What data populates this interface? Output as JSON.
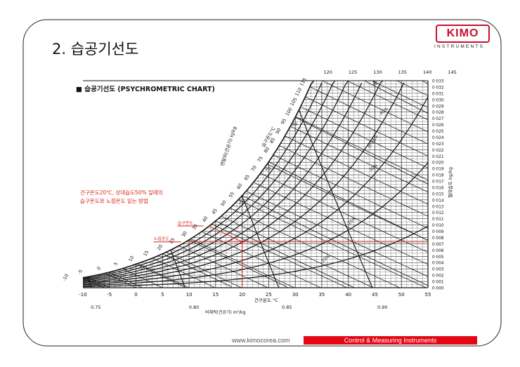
{
  "slide": {
    "title": "2. 습공기선도",
    "logo_text": "KIMO",
    "logo_sub": "INSTRUMENTS",
    "footer_url": "www.kimocorea.com",
    "footer_tagline": "Control  &  Measuring  Instruments"
  },
  "chart_data": {
    "type": "line",
    "title": "■ 습공기선도 (PSYCHROMETRIC CHART)",
    "annotation_lines": [
      "건구온도20℃, 상대습도50% 일때의",
      "습구온도와 노점온도 읽는 방법"
    ],
    "marker_labels": {
      "wet_bulb": "습구온도",
      "dew_point": "노점온도"
    },
    "xlabel": "건구온도 °C",
    "ylabel": "절대습도 kg/kg",
    "enthalpy_label": "엔탈피(건공기) kJ/kg",
    "wet_bulb_axis_label": "습구온도°C",
    "sv_axis_label": "비체적(건공기) m³/kg",
    "rh_axis_label": "상대습도",
    "xlim": [
      -10,
      55
    ],
    "ylim": [
      0,
      0.033
    ],
    "x_ticks": [
      -10,
      -5,
      0,
      5,
      10,
      15,
      20,
      25,
      30,
      35,
      40,
      45,
      50,
      55
    ],
    "y_ticks": [
      "0·000",
      "0·001",
      "0·002",
      "0·003",
      "0·004",
      "0·005",
      "0·006",
      "0·007",
      "0·008",
      "0·009",
      "0·010",
      "0·011",
      "0·012",
      "0·013",
      "0·014",
      "0·015",
      "0·016",
      "0·017",
      "0·018",
      "0·019",
      "0·020",
      "0·021",
      "0·022",
      "0·023",
      "0·024",
      "0·025",
      "0·026",
      "0·027",
      "0·028",
      "0·029",
      "0·030",
      "0·031",
      "0·032",
      "0·033"
    ],
    "enthalpy_ticks": [
      -10,
      -5,
      0,
      5,
      10,
      15,
      20,
      25,
      30,
      35,
      40,
      45,
      50,
      55,
      60,
      65,
      70,
      75,
      80,
      85,
      90,
      95,
      100,
      105,
      110,
      115,
      120,
      125,
      130,
      135,
      140,
      145
    ],
    "wet_bulb_ticks": [
      20,
      25,
      30,
      35,
      40,
      45,
      50,
      55
    ],
    "specific_volume_ticks": [
      "0.75",
      "0.80",
      "0.85",
      "0.90"
    ],
    "rh_curves": [
      {
        "label": "10%",
        "rh": 0.1
      },
      {
        "label": "20%",
        "rh": 0.2
      },
      {
        "label": "30%",
        "rh": 0.3
      },
      {
        "label": "40%",
        "rh": 0.4
      },
      {
        "label": "50%",
        "rh": 0.5
      },
      {
        "label": "60%",
        "rh": 0.6
      },
      {
        "label": "70%",
        "rh": 0.7
      },
      {
        "label": "80%",
        "rh": 0.8
      },
      {
        "label": "90%",
        "rh": 0.9
      },
      {
        "label": "100%",
        "rh": 1.0
      }
    ],
    "example_point": {
      "db": 20,
      "rh": 0.5,
      "w": 0.0073,
      "wet_bulb": 13.8,
      "dew_point": 9.3
    },
    "colors": {
      "lines": "#111111",
      "highlight": "#d9261c",
      "grid": "#333333"
    }
  }
}
